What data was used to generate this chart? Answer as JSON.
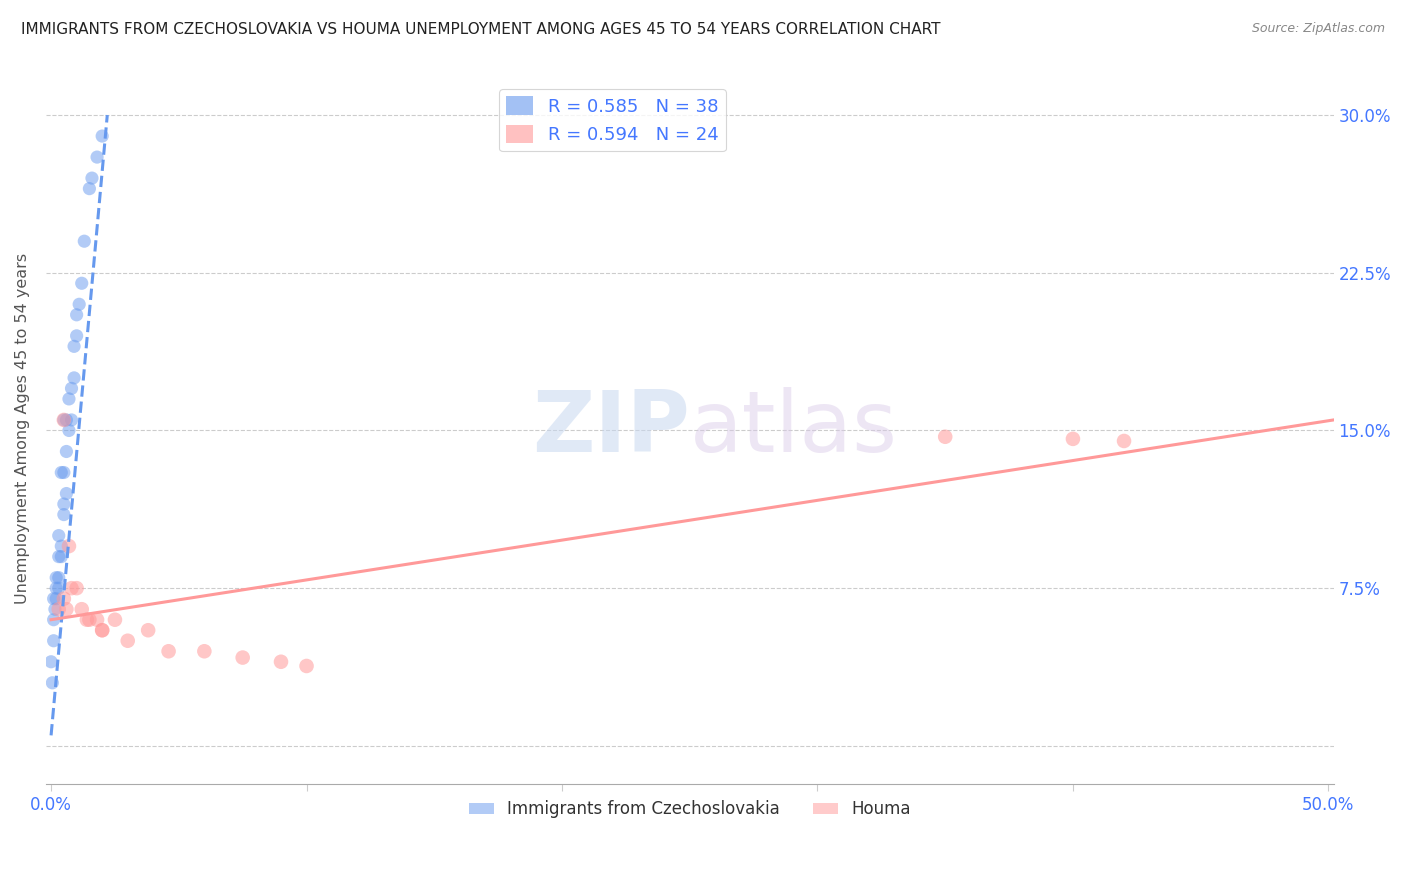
{
  "title": "IMMIGRANTS FROM CZECHOSLOVAKIA VS HOUMA UNEMPLOYMENT AMONG AGES 45 TO 54 YEARS CORRELATION CHART",
  "source": "Source: ZipAtlas.com",
  "ylabel": "Unemployment Among Ages 45 to 54 years",
  "xlim": [
    -0.002,
    0.502
  ],
  "ylim": [
    -0.018,
    0.32
  ],
  "yticks": [
    0.0,
    0.075,
    0.15,
    0.225,
    0.3
  ],
  "ytick_labels_right": [
    "",
    "7.5%",
    "15.0%",
    "22.5%",
    "30.0%"
  ],
  "blue_R": "0.585",
  "blue_N": "38",
  "pink_R": "0.594",
  "pink_N": "24",
  "blue_color": "#6699EE",
  "pink_color": "#FF9999",
  "blue_scatter_x": [
    0.0,
    0.0005,
    0.001,
    0.001,
    0.001,
    0.0015,
    0.002,
    0.002,
    0.002,
    0.003,
    0.003,
    0.003,
    0.003,
    0.004,
    0.004,
    0.004,
    0.005,
    0.005,
    0.005,
    0.005,
    0.006,
    0.006,
    0.006,
    0.007,
    0.007,
    0.008,
    0.008,
    0.009,
    0.009,
    0.01,
    0.01,
    0.011,
    0.012,
    0.013,
    0.015,
    0.016,
    0.018,
    0.02
  ],
  "blue_scatter_y": [
    0.04,
    0.03,
    0.05,
    0.06,
    0.07,
    0.065,
    0.07,
    0.075,
    0.08,
    0.075,
    0.08,
    0.09,
    0.1,
    0.09,
    0.095,
    0.13,
    0.11,
    0.115,
    0.13,
    0.155,
    0.12,
    0.14,
    0.155,
    0.15,
    0.165,
    0.155,
    0.17,
    0.175,
    0.19,
    0.195,
    0.205,
    0.21,
    0.22,
    0.24,
    0.265,
    0.27,
    0.28,
    0.29
  ],
  "pink_scatter_x": [
    0.003,
    0.005,
    0.007,
    0.008,
    0.01,
    0.012,
    0.014,
    0.018,
    0.02,
    0.025,
    0.03,
    0.038,
    0.046,
    0.06,
    0.075,
    0.09,
    0.1,
    0.35,
    0.4,
    0.42,
    0.005,
    0.006,
    0.015,
    0.02
  ],
  "pink_scatter_y": [
    0.065,
    0.155,
    0.095,
    0.075,
    0.075,
    0.065,
    0.06,
    0.06,
    0.055,
    0.06,
    0.05,
    0.055,
    0.045,
    0.045,
    0.042,
    0.04,
    0.038,
    0.147,
    0.146,
    0.145,
    0.07,
    0.065,
    0.06,
    0.055
  ],
  "blue_trend_x": [
    0.0,
    0.022
  ],
  "blue_trend_y": [
    0.005,
    0.3
  ],
  "pink_trend_x": [
    0.0,
    0.502
  ],
  "pink_trend_y": [
    0.06,
    0.155
  ],
  "watermark_zip": "ZIP",
  "watermark_atlas": "atlas",
  "legend_label_blue": "Immigrants from Czechoslovakia",
  "legend_label_pink": "Houma",
  "title_color": "#222222",
  "tick_label_color": "#4477FF",
  "source_color": "#888888"
}
